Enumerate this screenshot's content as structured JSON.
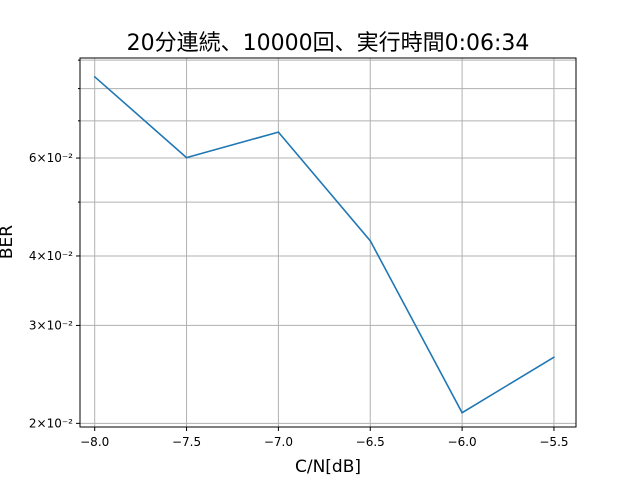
{
  "chart_data": {
    "type": "line",
    "title": "20分連続、10000回、実行時間0:06:34",
    "xlabel": "C/N[dB]",
    "ylabel": "BER",
    "yscale": "log",
    "grid": true,
    "x": [
      -8.0,
      -7.5,
      -7.0,
      -6.5,
      -6.0,
      -5.5
    ],
    "x_ticks": [
      "−8.0",
      "−7.5",
      "−7.0",
      "−6.5",
      "−6.0",
      "−5.5"
    ],
    "xlim": [
      -8.08,
      -5.38
    ],
    "ylim": [
      0.0197,
      0.0908
    ],
    "y_ticks": [
      {
        "value": 0.02,
        "label": "2×10⁻²"
      },
      {
        "value": 0.03,
        "label": "3×10⁻²"
      },
      {
        "value": 0.04,
        "label": "4×10⁻²"
      },
      {
        "value": 0.06,
        "label": "6×10⁻²"
      }
    ],
    "y_minor_gridlines": [
      0.05,
      0.07,
      0.08,
      0.09
    ],
    "series": [
      {
        "color": "#1f77b4",
        "values": [
          0.084,
          0.0601,
          0.0668,
          0.0426,
          0.0209,
          0.0263
        ]
      }
    ]
  }
}
